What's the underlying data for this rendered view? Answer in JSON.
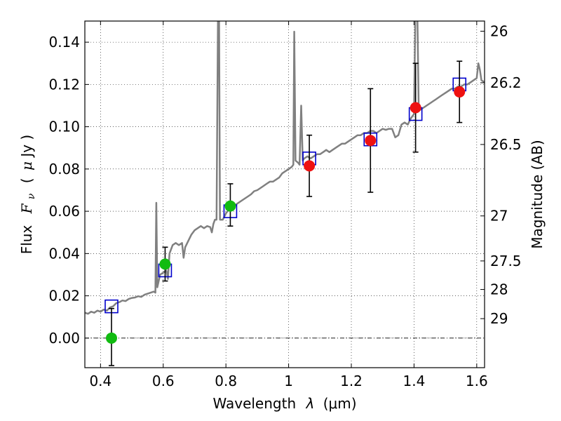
{
  "chart_data": {
    "type": "scatter",
    "xlabel_text": "Wavelength",
    "xlabel_symbol": "λ",
    "xlabel_unit": "(μm)",
    "ylabel_text": "Flux",
    "ylabel_symbol": "F",
    "ylabel_subscript": "ν",
    "ylabel_unit_open": "(",
    "ylabel_unit_mu": "μ",
    "ylabel_unit": "Jy )",
    "ylabel_right": "Magnitude (AB)",
    "xlim": [
      0.35,
      1.625
    ],
    "ylim": [
      -0.014,
      0.15
    ],
    "x_ticks": [
      0.4,
      0.6,
      0.8,
      1.0,
      1.2,
      1.4,
      1.6
    ],
    "x_tick_labels": [
      "0.4",
      "0.6",
      "0.8",
      "1",
      "1.2",
      "1.4",
      "1.6"
    ],
    "y_ticks": [
      0.0,
      0.02,
      0.04,
      0.06,
      0.08,
      0.1,
      0.12,
      0.14
    ],
    "y_tick_labels": [
      "0.00",
      "0.02",
      "0.04",
      "0.06",
      "0.08",
      "0.10",
      "0.12",
      "0.14"
    ],
    "right_ticks": [
      {
        "label": "26",
        "flux": 0.1452
      },
      {
        "label": "26.2",
        "flux": 0.1208
      },
      {
        "label": "26.5",
        "flux": 0.0916
      },
      {
        "label": "27",
        "flux": 0.0578
      },
      {
        "label": "27.5",
        "flux": 0.0365
      },
      {
        "label": "28",
        "flux": 0.023
      },
      {
        "label": "29",
        "flux": 0.0092
      }
    ],
    "grid": true,
    "zero_line": 0.0,
    "colors": {
      "spectrum": "#808080",
      "model_box": "#0000cc",
      "green": "#11bb11",
      "red": "#ee1111",
      "error": "#000000"
    },
    "spectrum": [
      [
        0.35,
        0.012
      ],
      [
        0.36,
        0.0115
      ],
      [
        0.37,
        0.0125
      ],
      [
        0.38,
        0.012
      ],
      [
        0.39,
        0.013
      ],
      [
        0.4,
        0.0125
      ],
      [
        0.41,
        0.0135
      ],
      [
        0.42,
        0.013
      ],
      [
        0.43,
        0.0145
      ],
      [
        0.44,
        0.015
      ],
      [
        0.45,
        0.0165
      ],
      [
        0.46,
        0.017
      ],
      [
        0.47,
        0.0178
      ],
      [
        0.48,
        0.0175
      ],
      [
        0.49,
        0.0185
      ],
      [
        0.5,
        0.019
      ],
      [
        0.51,
        0.0192
      ],
      [
        0.52,
        0.0198
      ],
      [
        0.53,
        0.0195
      ],
      [
        0.54,
        0.0205
      ],
      [
        0.55,
        0.021
      ],
      [
        0.56,
        0.0215
      ],
      [
        0.57,
        0.022
      ],
      [
        0.575,
        0.0215
      ],
      [
        0.578,
        0.064
      ],
      [
        0.581,
        0.024
      ],
      [
        0.59,
        0.03
      ],
      [
        0.6,
        0.031
      ],
      [
        0.61,
        0.032
      ],
      [
        0.615,
        0.028
      ],
      [
        0.62,
        0.04
      ],
      [
        0.63,
        0.044
      ],
      [
        0.64,
        0.045
      ],
      [
        0.65,
        0.044
      ],
      [
        0.66,
        0.045
      ],
      [
        0.665,
        0.038
      ],
      [
        0.67,
        0.043
      ],
      [
        0.68,
        0.046
      ],
      [
        0.69,
        0.049
      ],
      [
        0.7,
        0.051
      ],
      [
        0.71,
        0.052
      ],
      [
        0.72,
        0.053
      ],
      [
        0.73,
        0.052
      ],
      [
        0.74,
        0.053
      ],
      [
        0.75,
        0.0525
      ],
      [
        0.755,
        0.05
      ],
      [
        0.76,
        0.054
      ],
      [
        0.765,
        0.056
      ],
      [
        0.77,
        0.056
      ],
      [
        0.775,
        0.16
      ],
      [
        0.778,
        0.16
      ],
      [
        0.781,
        0.056
      ],
      [
        0.79,
        0.056
      ],
      [
        0.8,
        0.059
      ],
      [
        0.81,
        0.061
      ],
      [
        0.82,
        0.063
      ],
      [
        0.83,
        0.063
      ],
      [
        0.84,
        0.064
      ],
      [
        0.85,
        0.065
      ],
      [
        0.86,
        0.066
      ],
      [
        0.87,
        0.067
      ],
      [
        0.88,
        0.068
      ],
      [
        0.89,
        0.0695
      ],
      [
        0.9,
        0.07
      ],
      [
        0.91,
        0.071
      ],
      [
        0.92,
        0.072
      ],
      [
        0.93,
        0.073
      ],
      [
        0.94,
        0.074
      ],
      [
        0.95,
        0.074
      ],
      [
        0.96,
        0.075
      ],
      [
        0.97,
        0.076
      ],
      [
        0.98,
        0.078
      ],
      [
        0.99,
        0.079
      ],
      [
        1.0,
        0.08
      ],
      [
        1.01,
        0.081
      ],
      [
        1.015,
        0.082
      ],
      [
        1.018,
        0.145
      ],
      [
        1.022,
        0.084
      ],
      [
        1.03,
        0.083
      ],
      [
        1.035,
        0.082
      ],
      [
        1.04,
        0.11
      ],
      [
        1.045,
        0.084
      ],
      [
        1.05,
        0.085
      ],
      [
        1.06,
        0.086
      ],
      [
        1.07,
        0.085
      ],
      [
        1.08,
        0.086
      ],
      [
        1.09,
        0.087
      ],
      [
        1.1,
        0.087
      ],
      [
        1.11,
        0.088
      ],
      [
        1.12,
        0.089
      ],
      [
        1.13,
        0.088
      ],
      [
        1.14,
        0.089
      ],
      [
        1.15,
        0.09
      ],
      [
        1.16,
        0.091
      ],
      [
        1.17,
        0.092
      ],
      [
        1.18,
        0.092
      ],
      [
        1.19,
        0.093
      ],
      [
        1.2,
        0.094
      ],
      [
        1.21,
        0.095
      ],
      [
        1.22,
        0.096
      ],
      [
        1.23,
        0.096
      ],
      [
        1.24,
        0.097
      ],
      [
        1.25,
        0.097
      ],
      [
        1.26,
        0.098
      ],
      [
        1.27,
        0.098
      ],
      [
        1.28,
        0.097
      ],
      [
        1.29,
        0.098
      ],
      [
        1.3,
        0.099
      ],
      [
        1.31,
        0.0985
      ],
      [
        1.32,
        0.099
      ],
      [
        1.33,
        0.099
      ],
      [
        1.34,
        0.095
      ],
      [
        1.35,
        0.096
      ],
      [
        1.36,
        0.101
      ],
      [
        1.37,
        0.102
      ],
      [
        1.38,
        0.101
      ],
      [
        1.39,
        0.104
      ],
      [
        1.4,
        0.106
      ],
      [
        1.405,
        0.16
      ],
      [
        1.41,
        0.16
      ],
      [
        1.415,
        0.108
      ],
      [
        1.42,
        0.108
      ],
      [
        1.43,
        0.109
      ],
      [
        1.44,
        0.11
      ],
      [
        1.45,
        0.111
      ],
      [
        1.46,
        0.112
      ],
      [
        1.47,
        0.113
      ],
      [
        1.48,
        0.114
      ],
      [
        1.49,
        0.115
      ],
      [
        1.5,
        0.116
      ],
      [
        1.51,
        0.117
      ],
      [
        1.52,
        0.118
      ],
      [
        1.53,
        0.118
      ],
      [
        1.54,
        0.119
      ],
      [
        1.55,
        0.119
      ],
      [
        1.56,
        0.12
      ],
      [
        1.57,
        0.12
      ],
      [
        1.58,
        0.121
      ],
      [
        1.59,
        0.122
      ],
      [
        1.6,
        0.123
      ],
      [
        1.605,
        0.13
      ],
      [
        1.61,
        0.127
      ],
      [
        1.615,
        0.122
      ],
      [
        1.625,
        0.121
      ]
    ],
    "model_points": [
      {
        "x": 0.435,
        "y": 0.015
      },
      {
        "x": 0.606,
        "y": 0.032
      },
      {
        "x": 0.814,
        "y": 0.06
      },
      {
        "x": 1.066,
        "y": 0.085
      },
      {
        "x": 1.261,
        "y": 0.094
      },
      {
        "x": 1.405,
        "y": 0.106
      },
      {
        "x": 1.545,
        "y": 0.12
      }
    ],
    "observations": [
      {
        "x": 0.435,
        "y": 0.0,
        "ylo": -0.013,
        "yhi": 0.014,
        "color": "green"
      },
      {
        "x": 0.606,
        "y": 0.035,
        "ylo": 0.027,
        "yhi": 0.043,
        "color": "green"
      },
      {
        "x": 0.814,
        "y": 0.0625,
        "ylo": 0.053,
        "yhi": 0.073,
        "color": "green"
      },
      {
        "x": 1.066,
        "y": 0.0815,
        "ylo": 0.067,
        "yhi": 0.096,
        "color": "red"
      },
      {
        "x": 1.261,
        "y": 0.0935,
        "ylo": 0.069,
        "yhi": 0.118,
        "color": "red"
      },
      {
        "x": 1.405,
        "y": 0.109,
        "ylo": 0.088,
        "yhi": 0.13,
        "color": "red"
      },
      {
        "x": 1.545,
        "y": 0.1165,
        "ylo": 0.102,
        "yhi": 0.131,
        "color": "red"
      }
    ]
  }
}
